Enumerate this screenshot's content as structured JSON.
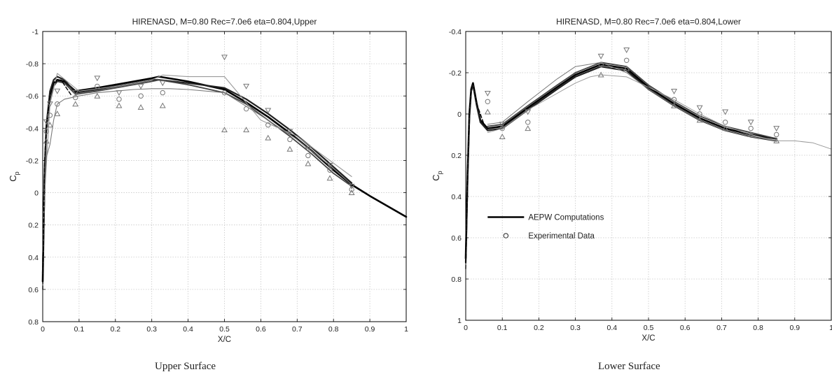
{
  "chart_data": [
    {
      "type": "line",
      "title": "HIRENASD, M=0.80 Rec=7.0e6 eta=0.804,Upper",
      "xlabel": "X/C",
      "ylabel": "C",
      "ylabel_sub": "p",
      "xlim": [
        0,
        1
      ],
      "ylim": [
        -1,
        0.8
      ],
      "y_inverted": true,
      "grid": true,
      "x_ticks": [
        0,
        0.1,
        0.2,
        0.3,
        0.4,
        0.5,
        0.6,
        0.7,
        0.8,
        0.9,
        1
      ],
      "x_tick_labels": [
        "0",
        "0.1",
        "0.2",
        "0.3",
        "0.4",
        "0.5",
        "0.6",
        "0.7",
        "0.8",
        "0.9",
        "1"
      ],
      "y_ticks": [
        -1,
        -0.8,
        -0.6,
        -0.4,
        -0.2,
        0,
        0.2,
        0.4,
        0.6,
        0.8
      ],
      "y_tick_labels": [
        "-1",
        "-0.8",
        "-0.6",
        "-0.4",
        "-0.2",
        "0",
        "0.2",
        "0.4",
        "0.6",
        "0.8"
      ],
      "series": [
        {
          "x": [
            0,
            0.005,
            0.01,
            0.02,
            0.03,
            0.04,
            0.06,
            0.09,
            0.15,
            0.2,
            0.25,
            0.3,
            0.32,
            0.4,
            0.5,
            0.56,
            0.62,
            0.68,
            0.74,
            0.8,
            0.85,
            0.9,
            1.0
          ],
          "y": [
            0.55,
            -0.1,
            -0.4,
            -0.6,
            -0.68,
            -0.7,
            -0.69,
            -0.63,
            -0.65,
            -0.67,
            -0.69,
            -0.71,
            -0.72,
            -0.69,
            -0.64,
            -0.56,
            -0.47,
            -0.37,
            -0.26,
            -0.14,
            -0.05,
            0.02,
            0.15
          ],
          "width": 2.6
        },
        {
          "x": [
            0,
            0.005,
            0.01,
            0.02,
            0.03,
            0.04,
            0.06,
            0.09,
            0.15,
            0.2,
            0.25,
            0.3,
            0.32,
            0.4,
            0.5,
            0.56,
            0.62,
            0.68,
            0.74,
            0.8,
            0.85
          ],
          "y": [
            0.5,
            -0.12,
            -0.42,
            -0.63,
            -0.7,
            -0.72,
            -0.7,
            -0.62,
            -0.64,
            -0.66,
            -0.68,
            -0.7,
            -0.7,
            -0.68,
            -0.65,
            -0.58,
            -0.49,
            -0.39,
            -0.28,
            -0.16,
            -0.06
          ],
          "width": 2.2
        },
        {
          "x": [
            0,
            0.01,
            0.02,
            0.03,
            0.04,
            0.06,
            0.09,
            0.15,
            0.2,
            0.25,
            0.3,
            0.32,
            0.4,
            0.5,
            0.56,
            0.62,
            0.68,
            0.74,
            0.8,
            0.85
          ],
          "y": [
            0.45,
            -0.38,
            -0.58,
            -0.66,
            -0.69,
            -0.68,
            -0.61,
            -0.63,
            -0.65,
            -0.67,
            -0.69,
            -0.7,
            -0.67,
            -0.62,
            -0.55,
            -0.45,
            -0.35,
            -0.24,
            -0.12,
            -0.04
          ],
          "width": 1.8
        },
        {
          "x": [
            0,
            0.02,
            0.04,
            0.1,
            0.2,
            0.3,
            0.33,
            0.4,
            0.5,
            0.6,
            0.7,
            0.85
          ],
          "y": [
            0.2,
            -0.55,
            -0.74,
            -0.63,
            -0.66,
            -0.7,
            -0.73,
            -0.72,
            -0.72,
            -0.45,
            -0.35,
            -0.1
          ],
          "width": 1.1
        },
        {
          "x": [
            0,
            0.01,
            0.02,
            0.03,
            0.04,
            0.06,
            0.1,
            0.15,
            0.2,
            0.25,
            0.3,
            0.35,
            0.4,
            0.5,
            0.55,
            0.62,
            0.7,
            0.8,
            0.85
          ],
          "y": [
            0.3,
            -0.22,
            -0.3,
            -0.45,
            -0.55,
            -0.58,
            -0.6,
            -0.62,
            -0.63,
            -0.64,
            -0.645,
            -0.645,
            -0.64,
            -0.62,
            -0.55,
            -0.45,
            -0.33,
            -0.15,
            -0.05
          ],
          "width": 1.1
        },
        {
          "x": [
            0,
            0.005,
            0.01,
            0.02,
            0.03,
            0.05,
            0.08
          ],
          "y": [
            0.6,
            -0.2,
            -0.4,
            -0.6,
            -0.68,
            -0.7,
            -0.6
          ],
          "width": 1.4,
          "dash": "5,3"
        }
      ],
      "markers": {
        "circle": {
          "x": [
            0.01,
            0.02,
            0.04,
            0.09,
            0.15,
            0.21,
            0.27,
            0.33,
            0.5,
            0.56,
            0.62,
            0.68,
            0.73,
            0.79,
            0.85
          ],
          "y": [
            -0.38,
            -0.48,
            -0.55,
            -0.59,
            -0.66,
            -0.58,
            -0.6,
            -0.62,
            -0.62,
            -0.52,
            -0.42,
            -0.33,
            -0.23,
            -0.14,
            -0.02
          ]
        },
        "triangle_down": {
          "x": [
            0.01,
            0.02,
            0.04,
            0.09,
            0.15,
            0.21,
            0.27,
            0.33,
            0.5,
            0.56,
            0.62,
            0.68,
            0.73,
            0.79,
            0.85
          ],
          "y": [
            -0.44,
            -0.55,
            -0.63,
            -0.62,
            -0.71,
            -0.62,
            -0.66,
            -0.68,
            -0.84,
            -0.66,
            -0.51,
            -0.38,
            -0.27,
            -0.17,
            -0.04
          ]
        },
        "triangle_up": {
          "x": [
            0.01,
            0.02,
            0.04,
            0.09,
            0.15,
            0.21,
            0.27,
            0.33,
            0.5,
            0.56,
            0.62,
            0.68,
            0.73,
            0.79,
            0.85
          ],
          "y": [
            -0.32,
            -0.42,
            -0.49,
            -0.55,
            -0.6,
            -0.54,
            -0.53,
            -0.54,
            -0.39,
            -0.39,
            -0.34,
            -0.27,
            -0.18,
            -0.09,
            0.0
          ]
        }
      }
    },
    {
      "type": "line",
      "title": "HIRENASD, M=0.80 Rec=7.0e6 eta=0.804,Lower",
      "xlabel": "X/C",
      "ylabel": "C",
      "ylabel_sub": "p",
      "xlim": [
        0,
        1
      ],
      "ylim": [
        -0.4,
        1
      ],
      "y_inverted": true,
      "grid": true,
      "x_ticks": [
        0,
        0.1,
        0.2,
        0.3,
        0.4,
        0.5,
        0.6,
        0.7,
        0.8,
        0.9,
        1
      ],
      "x_tick_labels": [
        "0",
        "0.1",
        "0.2",
        "0.3",
        "0.4",
        "0.5",
        "0.6",
        "0.7",
        "0.8",
        "0.9",
        "1"
      ],
      "y_ticks": [
        -0.4,
        -0.2,
        0,
        0.2,
        0.4,
        0.6,
        0.8,
        1
      ],
      "y_tick_labels": [
        "-0.4",
        "-0.2",
        "0",
        "0.2",
        "0.4",
        "0.6",
        "0.8",
        "1"
      ],
      "legend": {
        "placement": "middle-left",
        "entries": [
          "AEPW Computations",
          "Experimental Data"
        ]
      },
      "series": [
        {
          "x": [
            0,
            0.005,
            0.01,
            0.015,
            0.02,
            0.03,
            0.04,
            0.06,
            0.1,
            0.17,
            0.25,
            0.3,
            0.37,
            0.44,
            0.5,
            0.57,
            0.64,
            0.71,
            0.78,
            0.85
          ],
          "y": [
            0.7,
            0.3,
            0.0,
            -0.12,
            -0.15,
            -0.05,
            0.03,
            0.07,
            0.06,
            -0.03,
            -0.13,
            -0.19,
            -0.24,
            -0.22,
            -0.13,
            -0.05,
            0.02,
            0.07,
            0.1,
            0.12
          ],
          "width": 2.6
        },
        {
          "x": [
            0,
            0.005,
            0.01,
            0.015,
            0.02,
            0.03,
            0.04,
            0.06,
            0.1,
            0.17,
            0.25,
            0.3,
            0.37,
            0.44,
            0.5,
            0.57,
            0.64,
            0.71,
            0.78,
            0.85
          ],
          "y": [
            0.72,
            0.32,
            0.02,
            -0.11,
            -0.14,
            -0.04,
            0.04,
            0.08,
            0.07,
            -0.02,
            -0.12,
            -0.18,
            -0.23,
            -0.21,
            -0.12,
            -0.04,
            0.03,
            0.08,
            0.11,
            0.13
          ],
          "width": 2.2
        },
        {
          "x": [
            0.06,
            0.1,
            0.17,
            0.25,
            0.3,
            0.37,
            0.44,
            0.5,
            0.57,
            0.64,
            0.71,
            0.78,
            0.85
          ],
          "y": [
            0.06,
            0.05,
            -0.04,
            -0.14,
            -0.2,
            -0.25,
            -0.23,
            -0.14,
            -0.06,
            0.01,
            0.06,
            0.09,
            0.12
          ],
          "width": 1.8
        },
        {
          "x": [
            0.06,
            0.1,
            0.17,
            0.25,
            0.3,
            0.34,
            0.37,
            0.44,
            0.5,
            0.57,
            0.64,
            0.71,
            0.78,
            0.85,
            0.9,
            0.95,
            1.0
          ],
          "y": [
            0.09,
            0.07,
            -0.02,
            -0.1,
            -0.15,
            -0.18,
            -0.19,
            -0.18,
            -0.13,
            -0.07,
            0.0,
            0.06,
            0.1,
            0.13,
            0.13,
            0.14,
            0.17
          ],
          "width": 1.0
        },
        {
          "x": [
            0.06,
            0.1,
            0.17,
            0.25,
            0.3,
            0.37,
            0.44,
            0.5,
            0.57,
            0.64,
            0.71,
            0.78,
            0.85
          ],
          "y": [
            0.05,
            0.04,
            -0.06,
            -0.17,
            -0.23,
            -0.25,
            -0.2,
            -0.12,
            -0.04,
            0.03,
            0.08,
            0.11,
            0.13
          ],
          "width": 1.0
        },
        {
          "x": [
            0,
            0.005,
            0.01,
            0.015,
            0.02,
            0.03,
            0.05
          ],
          "y": [
            0.75,
            0.3,
            0.0,
            -0.12,
            -0.15,
            -0.05,
            0.05
          ],
          "width": 1.4,
          "dash": "5,3"
        }
      ],
      "markers": {
        "circle": {
          "x": [
            0.06,
            0.1,
            0.17,
            0.37,
            0.44,
            0.57,
            0.64,
            0.71,
            0.78,
            0.85
          ],
          "y": [
            -0.06,
            0.07,
            0.04,
            -0.24,
            -0.26,
            -0.07,
            0.0,
            0.04,
            0.07,
            0.1
          ]
        },
        "triangle_down": {
          "x": [
            0.06,
            0.1,
            0.17,
            0.37,
            0.44,
            0.57,
            0.64,
            0.71,
            0.78,
            0.85
          ],
          "y": [
            -0.1,
            0.05,
            -0.01,
            -0.28,
            -0.31,
            -0.11,
            -0.03,
            -0.01,
            0.04,
            0.07
          ]
        },
        "triangle_up": {
          "x": [
            0.06,
            0.1,
            0.17,
            0.37,
            0.44,
            0.57,
            0.64,
            0.71,
            0.78,
            0.85
          ],
          "y": [
            -0.01,
            0.11,
            0.07,
            -0.19,
            -0.22,
            -0.04,
            0.03,
            0.07,
            0.1,
            0.13
          ]
        }
      }
    }
  ],
  "captions": {
    "left": "Upper Surface",
    "right": "Lower Surface"
  }
}
